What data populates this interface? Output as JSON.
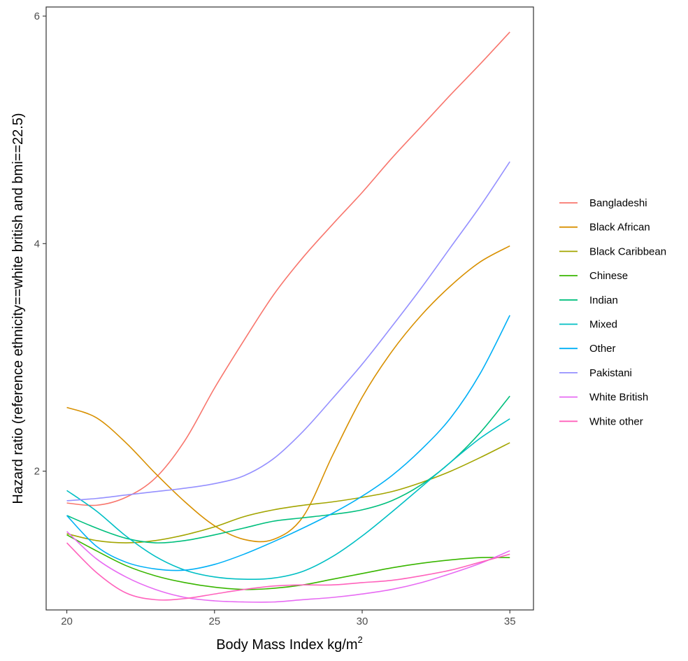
{
  "chart_data": {
    "type": "line",
    "title": "",
    "xlabel": "Body Mass Index kg/m",
    "xlabel_superscript": "2",
    "ylabel": "Hazard ratio (reference ethnicity==white british and bmi==22.5)",
    "xlim": [
      19.3,
      35.8
    ],
    "ylim": [
      0.78,
      6.08
    ],
    "x_ticks": [
      20,
      25,
      30,
      35
    ],
    "y_ticks": [
      2,
      4,
      6
    ],
    "x_tick_labels": [
      "20",
      "25",
      "30",
      "35"
    ],
    "y_tick_labels": [
      "2",
      "4",
      "6"
    ],
    "grid": false,
    "legend_position": "right",
    "x": [
      20,
      21,
      22,
      23,
      24,
      25,
      26,
      27,
      28,
      29,
      30,
      31,
      32,
      33,
      34,
      35
    ],
    "series": [
      {
        "name": "Bangladeshi",
        "color": "#F8766D",
        "values": [
          1.72,
          1.7,
          1.77,
          1.94,
          2.27,
          2.73,
          3.15,
          3.55,
          3.88,
          4.17,
          4.45,
          4.75,
          5.03,
          5.31,
          5.58,
          5.86
        ]
      },
      {
        "name": "Black African",
        "color": "#D89000",
        "values": [
          2.56,
          2.47,
          2.25,
          1.98,
          1.73,
          1.52,
          1.4,
          1.4,
          1.6,
          2.14,
          2.65,
          3.05,
          3.37,
          3.63,
          3.84,
          3.98
        ]
      },
      {
        "name": "Black Caribbean",
        "color": "#A3A500",
        "values": [
          1.45,
          1.39,
          1.37,
          1.39,
          1.44,
          1.51,
          1.6,
          1.66,
          1.7,
          1.73,
          1.77,
          1.82,
          1.9,
          2.0,
          2.12,
          2.25
        ]
      },
      {
        "name": "Chinese",
        "color": "#39B600",
        "values": [
          1.44,
          1.3,
          1.17,
          1.08,
          1.02,
          0.98,
          0.96,
          0.97,
          1.0,
          1.05,
          1.1,
          1.15,
          1.19,
          1.22,
          1.24,
          1.24
        ]
      },
      {
        "name": "Indian",
        "color": "#00BF7D",
        "values": [
          1.61,
          1.5,
          1.41,
          1.37,
          1.39,
          1.44,
          1.5,
          1.56,
          1.59,
          1.62,
          1.66,
          1.74,
          1.88,
          2.08,
          2.34,
          2.66
        ]
      },
      {
        "name": "Mixed",
        "color": "#00BFC4",
        "values": [
          1.83,
          1.65,
          1.43,
          1.25,
          1.13,
          1.07,
          1.05,
          1.06,
          1.12,
          1.25,
          1.43,
          1.64,
          1.86,
          2.08,
          2.29,
          2.46
        ]
      },
      {
        "name": "Other",
        "color": "#00B0F6",
        "values": [
          1.61,
          1.34,
          1.2,
          1.14,
          1.13,
          1.18,
          1.27,
          1.38,
          1.5,
          1.63,
          1.78,
          1.96,
          2.19,
          2.47,
          2.86,
          3.37
        ]
      },
      {
        "name": "Pakistani",
        "color": "#9590FF",
        "values": [
          1.74,
          1.76,
          1.79,
          1.82,
          1.85,
          1.89,
          1.96,
          2.11,
          2.35,
          2.64,
          2.94,
          3.27,
          3.61,
          3.97,
          4.33,
          4.72
        ]
      },
      {
        "name": "White British",
        "color": "#E76BF3",
        "values": [
          1.47,
          1.23,
          1.07,
          0.96,
          0.89,
          0.86,
          0.85,
          0.85,
          0.87,
          0.89,
          0.92,
          0.96,
          1.02,
          1.1,
          1.19,
          1.3
        ]
      },
      {
        "name": "White other",
        "color": "#FF62BC",
        "values": [
          1.37,
          1.11,
          0.93,
          0.87,
          0.88,
          0.92,
          0.96,
          0.99,
          1.0,
          1.0,
          1.02,
          1.04,
          1.08,
          1.13,
          1.2,
          1.27
        ]
      }
    ]
  }
}
